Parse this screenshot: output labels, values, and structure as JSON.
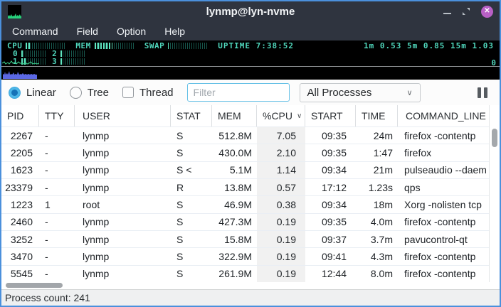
{
  "window": {
    "title": "lynmp@lyn-nvme"
  },
  "titlebar": {
    "close_glyph": "✕"
  },
  "menubar": {
    "items": [
      "Command",
      "Field",
      "Option",
      "Help"
    ]
  },
  "monitor": {
    "cpu_label": "CPU",
    "cpu_pct": 13,
    "mem_label": "MEM",
    "mem_pct": 45,
    "swap_label": "SWAP",
    "swap_pct": 2,
    "uptime": "UPTIME 7:38:52",
    "load_average": "1m 0.53 5m 0.85 15m 1.03",
    "graph_zero_label": "0",
    "cores": [
      {
        "label": "0",
        "pct": 12
      },
      {
        "label": "1",
        "pct": 20
      },
      {
        "label": "2",
        "pct": 6
      },
      {
        "label": "3",
        "pct": 10
      }
    ]
  },
  "toolbar": {
    "linear_label": "Linear",
    "tree_label": "Tree",
    "thread_label": "Thread",
    "filter_placeholder": "Filter",
    "filter_value": "",
    "process_filter_value": "All Processes",
    "chevron_glyph": "∨"
  },
  "table": {
    "sort_indicator": "∨",
    "columns": [
      {
        "label": "PID"
      },
      {
        "label": "TTY"
      },
      {
        "label": "USER"
      },
      {
        "label": "STAT"
      },
      {
        "label": "MEM"
      },
      {
        "label": "%CPU",
        "sorted": true
      },
      {
        "label": "START"
      },
      {
        "label": "TIME"
      },
      {
        "label": "COMMAND_LINE"
      }
    ],
    "rows": [
      {
        "pid": "2267",
        "tty": "-",
        "user": "lynmp",
        "stat": "S",
        "mem": "512.8M",
        "cpu": "7.05",
        "start": "09:35",
        "time": "24m",
        "cmd": "firefox -contentp"
      },
      {
        "pid": "2205",
        "tty": "-",
        "user": "lynmp",
        "stat": "S",
        "mem": "430.0M",
        "cpu": "2.10",
        "start": "09:35",
        "time": "1:47",
        "cmd": "firefox"
      },
      {
        "pid": "1623",
        "tty": "-",
        "user": "lynmp",
        "stat": "S <",
        "mem": "5.1M",
        "cpu": "1.14",
        "start": "09:34",
        "time": "21m",
        "cmd": "pulseaudio --daem"
      },
      {
        "pid": "23379",
        "tty": "-",
        "user": "lynmp",
        "stat": "R",
        "mem": "13.8M",
        "cpu": "0.57",
        "start": "17:12",
        "time": "1.23s",
        "cmd": "qps"
      },
      {
        "pid": "1223",
        "tty": "1",
        "user": "root",
        "stat": "S",
        "mem": "46.9M",
        "cpu": "0.38",
        "start": "09:34",
        "time": "18m",
        "cmd": "Xorg -nolisten tcp"
      },
      {
        "pid": "2460",
        "tty": "-",
        "user": "lynmp",
        "stat": "S",
        "mem": "427.3M",
        "cpu": "0.19",
        "start": "09:35",
        "time": "4.0m",
        "cmd": "firefox -contentp"
      },
      {
        "pid": "3252",
        "tty": "-",
        "user": "lynmp",
        "stat": "S",
        "mem": "15.8M",
        "cpu": "0.19",
        "start": "09:37",
        "time": "3.7m",
        "cmd": "pavucontrol-qt"
      },
      {
        "pid": "3470",
        "tty": "-",
        "user": "lynmp",
        "stat": "S",
        "mem": "322.9M",
        "cpu": "0.19",
        "start": "09:41",
        "time": "4.3m",
        "cmd": "firefox -contentp"
      },
      {
        "pid": "5545",
        "tty": "-",
        "user": "lynmp",
        "stat": "S",
        "mem": "261.9M",
        "cpu": "0.19",
        "start": "12:44",
        "time": "8.0m",
        "cmd": "firefox -contentp"
      }
    ]
  },
  "statusbar": {
    "text": "Process count: 241"
  },
  "colors": {
    "accent": "#4b90dc",
    "titlebar": "#2f343f",
    "close_button": "#b960c6",
    "meter_teal": "#4fd5bb",
    "graph_green": "#3ed48e",
    "graph_blue": "#5b68e4",
    "radio_selected": "#1572b8",
    "sorted_column_bg": "#f1f1f1"
  }
}
